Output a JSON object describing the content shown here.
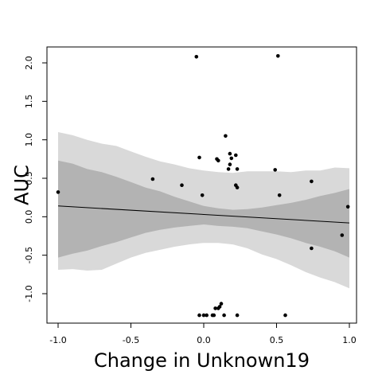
{
  "chart_data": {
    "type": "scatter",
    "title": "",
    "xlabel": "Change in Unknown19",
    "ylabel": "AUC",
    "xlim": [
      -1.0,
      1.0
    ],
    "ylim": [
      -1.3,
      2.1
    ],
    "x_ticks": [
      -1.0,
      -0.5,
      0.0,
      0.5,
      1.0
    ],
    "x_tick_labels": [
      "-1.0",
      "-0.5",
      "0.0",
      "0.5",
      "1.0"
    ],
    "y_ticks": [
      -1.0,
      -0.5,
      0.0,
      0.5,
      1.0,
      1.5,
      2.0
    ],
    "y_tick_labels": [
      "-1.0",
      "-0.5",
      "0.0",
      "0.5",
      "1.0",
      "1.5",
      "2.0"
    ],
    "grid": false,
    "legend": "none",
    "colors": {
      "points": "#000000",
      "fit_line": "#000000",
      "inner_band": "#b3b3b3",
      "outer_band": "#d9d9d9"
    },
    "points": [
      {
        "x": -1.0,
        "y": 0.32
      },
      {
        "x": -0.35,
        "y": 0.49
      },
      {
        "x": -0.15,
        "y": 0.41
      },
      {
        "x": -0.05,
        "y": 2.08
      },
      {
        "x": -0.03,
        "y": 0.77
      },
      {
        "x": -0.03,
        "y": -1.28
      },
      {
        "x": -0.01,
        "y": 0.28
      },
      {
        "x": 0.0,
        "y": -1.28
      },
      {
        "x": 0.02,
        "y": -1.28
      },
      {
        "x": 0.06,
        "y": -1.28
      },
      {
        "x": 0.07,
        "y": -1.28
      },
      {
        "x": 0.08,
        "y": -1.19
      },
      {
        "x": 0.09,
        "y": 0.75
      },
      {
        "x": 0.1,
        "y": 0.73
      },
      {
        "x": 0.1,
        "y": -1.19
      },
      {
        "x": 0.11,
        "y": -1.17
      },
      {
        "x": 0.12,
        "y": -1.13
      },
      {
        "x": 0.15,
        "y": 1.05
      },
      {
        "x": 0.14,
        "y": -1.28
      },
      {
        "x": 0.17,
        "y": 0.62
      },
      {
        "x": 0.18,
        "y": 0.68
      },
      {
        "x": 0.18,
        "y": 0.82
      },
      {
        "x": 0.19,
        "y": 0.76
      },
      {
        "x": 0.22,
        "y": 0.8
      },
      {
        "x": 0.23,
        "y": 0.62
      },
      {
        "x": 0.23,
        "y": 0.38
      },
      {
        "x": 0.22,
        "y": 0.41
      },
      {
        "x": 0.23,
        "y": -1.28
      },
      {
        "x": 0.51,
        "y": 2.09
      },
      {
        "x": 0.49,
        "y": 0.61
      },
      {
        "x": 0.52,
        "y": 0.28
      },
      {
        "x": 0.56,
        "y": -1.28
      },
      {
        "x": 0.74,
        "y": 0.46
      },
      {
        "x": 0.74,
        "y": -0.41
      },
      {
        "x": 0.95,
        "y": -0.24
      },
      {
        "x": 0.99,
        "y": 0.13
      }
    ],
    "fit_line": {
      "x": [
        -1.0,
        1.0
      ],
      "y": [
        0.14,
        -0.08
      ]
    },
    "band_x": [
      -1.0,
      -0.9,
      -0.8,
      -0.7,
      -0.6,
      -0.5,
      -0.4,
      -0.3,
      -0.2,
      -0.1,
      0.0,
      0.1,
      0.2,
      0.3,
      0.4,
      0.5,
      0.6,
      0.7,
      0.8,
      0.9,
      1.0
    ],
    "inner_band_upper": [
      0.73,
      0.69,
      0.62,
      0.58,
      0.52,
      0.45,
      0.38,
      0.33,
      0.26,
      0.2,
      0.14,
      0.11,
      0.09,
      0.1,
      0.12,
      0.15,
      0.18,
      0.22,
      0.27,
      0.31,
      0.36
    ],
    "inner_band_lower": [
      -0.53,
      -0.48,
      -0.44,
      -0.38,
      -0.33,
      -0.27,
      -0.21,
      -0.17,
      -0.14,
      -0.12,
      -0.1,
      -0.12,
      -0.13,
      -0.15,
      -0.19,
      -0.23,
      -0.28,
      -0.34,
      -0.39,
      -0.45,
      -0.53
    ],
    "outer_band_upper": [
      1.1,
      1.06,
      1.0,
      0.95,
      0.92,
      0.85,
      0.78,
      0.72,
      0.68,
      0.63,
      0.6,
      0.58,
      0.57,
      0.59,
      0.59,
      0.59,
      0.58,
      0.6,
      0.6,
      0.64,
      0.63
    ],
    "outer_band_lower": [
      -0.69,
      -0.68,
      -0.7,
      -0.69,
      -0.61,
      -0.53,
      -0.47,
      -0.43,
      -0.39,
      -0.36,
      -0.34,
      -0.34,
      -0.36,
      -0.41,
      -0.49,
      -0.55,
      -0.63,
      -0.72,
      -0.79,
      -0.85,
      -0.93
    ]
  }
}
